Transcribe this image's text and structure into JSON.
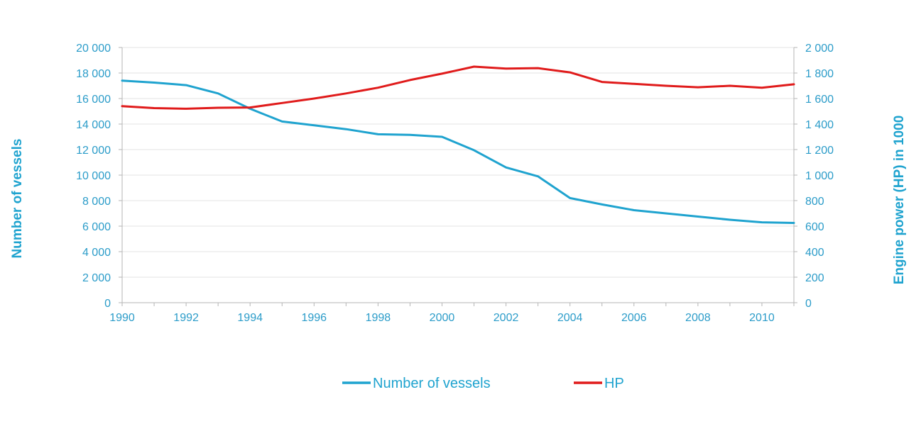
{
  "colors": {
    "vessels": "#1fa3cf",
    "hp": "#e01b1b",
    "tick_text": "#2b9cc9",
    "grid": "#e3e3e3",
    "axis": "#b5b5b5"
  },
  "chart_data": {
    "type": "line",
    "x": [
      1990,
      1991,
      1992,
      1993,
      1994,
      1995,
      1996,
      1997,
      1998,
      1999,
      2000,
      2001,
      2002,
      2003,
      2004,
      2005,
      2006,
      2007,
      2008,
      2009,
      2010,
      2011
    ],
    "x_ticks": [
      "1990",
      "1992",
      "1994",
      "1996",
      "1998",
      "2000",
      "2002",
      "2004",
      "2006",
      "2008",
      "2010"
    ],
    "xlim": [
      1990,
      2011
    ],
    "series": [
      {
        "name": "Number of vessels",
        "axis": "left",
        "values": [
          17400,
          17250,
          17050,
          16400,
          15200,
          14200,
          13900,
          13600,
          13200,
          13150,
          13000,
          11950,
          10600,
          9900,
          8200,
          7700,
          7250,
          7000,
          6750,
          6500,
          6300,
          6250
        ]
      },
      {
        "name": "HP",
        "axis": "right",
        "values": [
          1540,
          1525,
          1520,
          1528,
          1530,
          1565,
          1600,
          1640,
          1685,
          1745,
          1795,
          1850,
          1835,
          1838,
          1805,
          1730,
          1715,
          1700,
          1688,
          1700,
          1685,
          1712
        ]
      }
    ],
    "y_left": {
      "label": "Number of vessels",
      "ylim": [
        0,
        20000
      ],
      "tick_labels": [
        "0",
        "2 000",
        "4 000",
        "6 000",
        "8 000",
        "10 000",
        "12 000",
        "14 000",
        "16 000",
        "18 000",
        "20 000"
      ]
    },
    "y_right": {
      "label": "Engine power (HP) in 1000",
      "ylim": [
        0,
        2000
      ],
      "tick_labels": [
        "0",
        "200",
        "400",
        "600",
        "800",
        "1 000",
        "1 200",
        "1 400",
        "1 600",
        "1 800",
        "2 000"
      ]
    },
    "grid": true,
    "legend_position": "bottom-center"
  }
}
